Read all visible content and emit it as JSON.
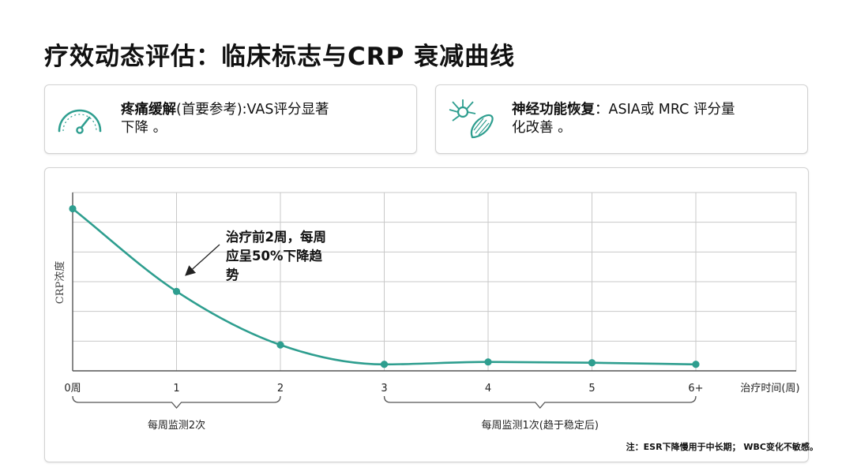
{
  "header": {
    "title": "疗效动态评估：临床标志与CRP 衰减曲线"
  },
  "cards": [
    {
      "icon": "speedometer-icon",
      "title": "疼痛缓解",
      "line1_rest": "(首要参考):VAS评分显著",
      "line2": "下降 。"
    },
    {
      "icon": "neuron-muscle-icon",
      "title": "神经功能恢复",
      "line1_rest": "：ASIA或 MRC 评分量",
      "line2": "化改善 。"
    }
  ],
  "chart_data": {
    "type": "line",
    "title": "",
    "xlabel": "治疗时间(周)",
    "ylabel": "CRP浓度",
    "categories": [
      "0周",
      "1",
      "2",
      "3",
      "4",
      "5",
      "6+"
    ],
    "x": [
      0,
      1,
      2,
      3,
      4,
      5,
      6
    ],
    "series": [
      {
        "values": [
          100,
          49,
          16,
          4,
          5.5,
          5,
          4
        ]
      }
    ],
    "ylim": [
      0,
      110
    ],
    "grid": true,
    "line_color": "#2e9e8f",
    "annotation": {
      "lines": [
        "治疗前2周，每周",
        "应呈50%下降趋",
        "势"
      ],
      "points_to_x": 1
    },
    "monitoring": [
      {
        "label": "每周监测2次",
        "from_x": 0,
        "to_x": 2
      },
      {
        "label": "每周监测1次(趋于稳定后)",
        "from_x": 3,
        "to_x": 6
      }
    ]
  },
  "footer": {
    "note": "注：ESR下降慢用于中长期；  WBC变化不敏感。"
  },
  "colors": {
    "accent": "#2e9e8f",
    "grid": "#c8c8c8",
    "text": "#111111"
  }
}
